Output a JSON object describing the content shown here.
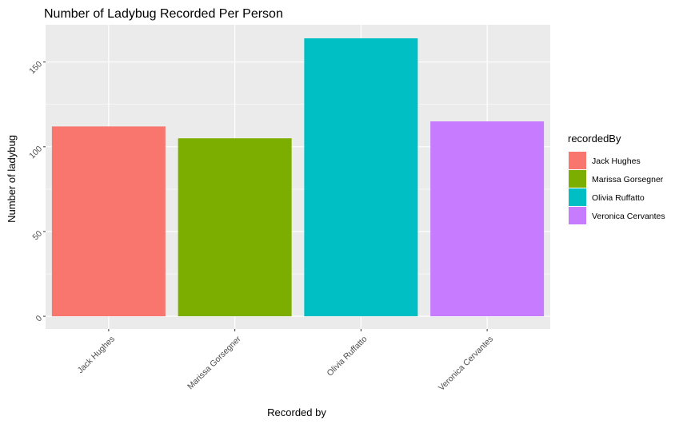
{
  "chart_data": {
    "type": "bar",
    "title": "Number of Ladybug Recorded Per Person",
    "xlabel": "Recorded by",
    "ylabel": "Number of ladybug",
    "categories": [
      "Jack Hughes",
      "Marissa Gorsegner",
      "Olivia Ruffatto",
      "Veronica Cervantes"
    ],
    "values": [
      112,
      105,
      164,
      115
    ],
    "colors": [
      "#F8766D",
      "#7CAE00",
      "#00BFC4",
      "#C77CFF"
    ],
    "ylim": [
      -7.5,
      172
    ],
    "yticks": [
      0,
      50,
      100,
      150
    ],
    "ytick_labels": [
      "0",
      "50",
      "100",
      "150"
    ],
    "grid": true,
    "panel_background": "#EBEBEB",
    "legend": {
      "title": "recordedBy",
      "placement": "right",
      "entries": [
        "Jack Hughes",
        "Marissa Gorsegner",
        "Olivia Ruffatto",
        "Veronica Cervantes"
      ]
    }
  }
}
